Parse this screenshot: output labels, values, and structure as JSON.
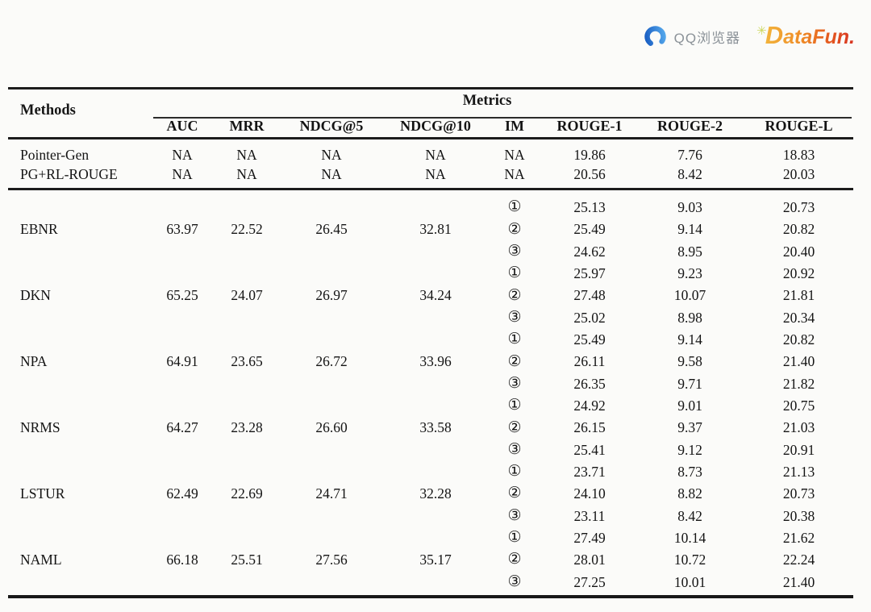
{
  "logos": {
    "qq_browser": {
      "label": "QQ浏览器",
      "icon_color_start": "#55aaec",
      "icon_color_end": "#1559c0"
    },
    "datafun": {
      "wordmark": "DataFun.",
      "spark_icon": "✳",
      "accent_from": "#f2b43c",
      "accent_to": "#d63222"
    }
  },
  "table": {
    "methods_header": "Methods",
    "metrics_header": "Metrics",
    "columns": [
      "AUC",
      "MRR",
      "NDCG@5",
      "NDCG@10",
      "IM",
      "ROUGE-1",
      "ROUGE-2",
      "ROUGE-L"
    ],
    "baseline_rows": [
      {
        "method": "Pointer-Gen",
        "auc": "NA",
        "mrr": "NA",
        "ndcg5": "NA",
        "ndcg10": "NA",
        "im": "NA",
        "rouge1": "19.86",
        "rouge2": "7.76",
        "rougeL": "18.83"
      },
      {
        "method": "PG+RL-ROUGE",
        "auc": "NA",
        "mrr": "NA",
        "ndcg5": "NA",
        "ndcg10": "NA",
        "im": "NA",
        "rouge1": "20.56",
        "rouge2": "8.42",
        "rougeL": "20.03"
      }
    ],
    "group_rows": [
      {
        "method": "EBNR",
        "auc": "63.97",
        "mrr": "22.52",
        "ndcg5": "26.45",
        "ndcg10": "32.81",
        "im_rows": [
          {
            "im": "①",
            "rouge1": "25.13",
            "rouge2": "9.03",
            "rougeL": "20.73"
          },
          {
            "im": "②",
            "rouge1": "25.49",
            "rouge2": "9.14",
            "rougeL": "20.82"
          },
          {
            "im": "③",
            "rouge1": "24.62",
            "rouge2": "8.95",
            "rougeL": "20.40"
          }
        ]
      },
      {
        "method": "DKN",
        "auc": "65.25",
        "mrr": "24.07",
        "ndcg5": "26.97",
        "ndcg10": "34.24",
        "im_rows": [
          {
            "im": "①",
            "rouge1": "25.97",
            "rouge2": "9.23",
            "rougeL": "20.92"
          },
          {
            "im": "②",
            "rouge1": "27.48",
            "rouge2": "10.07",
            "rougeL": "21.81"
          },
          {
            "im": "③",
            "rouge1": "25.02",
            "rouge2": "8.98",
            "rougeL": "20.34"
          }
        ]
      },
      {
        "method": "NPA",
        "auc": "64.91",
        "mrr": "23.65",
        "ndcg5": "26.72",
        "ndcg10": "33.96",
        "im_rows": [
          {
            "im": "①",
            "rouge1": "25.49",
            "rouge2": "9.14",
            "rougeL": "20.82"
          },
          {
            "im": "②",
            "rouge1": "26.11",
            "rouge2": "9.58",
            "rougeL": "21.40"
          },
          {
            "im": "③",
            "rouge1": "26.35",
            "rouge2": "9.71",
            "rougeL": "21.82"
          }
        ]
      },
      {
        "method": "NRMS",
        "auc": "64.27",
        "mrr": "23.28",
        "ndcg5": "26.60",
        "ndcg10": "33.58",
        "im_rows": [
          {
            "im": "①",
            "rouge1": "24.92",
            "rouge2": "9.01",
            "rougeL": "20.75"
          },
          {
            "im": "②",
            "rouge1": "26.15",
            "rouge2": "9.37",
            "rougeL": "21.03"
          },
          {
            "im": "③",
            "rouge1": "25.41",
            "rouge2": "9.12",
            "rougeL": "20.91"
          }
        ]
      },
      {
        "method": "LSTUR",
        "auc": "62.49",
        "mrr": "22.69",
        "ndcg5": "24.71",
        "ndcg10": "32.28",
        "im_rows": [
          {
            "im": "①",
            "rouge1": "23.71",
            "rouge2": "8.73",
            "rougeL": "21.13"
          },
          {
            "im": "②",
            "rouge1": "24.10",
            "rouge2": "8.82",
            "rougeL": "20.73"
          },
          {
            "im": "③",
            "rouge1": "23.11",
            "rouge2": "8.42",
            "rougeL": "20.38"
          }
        ]
      },
      {
        "method": "NAML",
        "auc": "66.18",
        "mrr": "25.51",
        "ndcg5": "27.56",
        "ndcg10": "35.17",
        "im_rows": [
          {
            "im": "①",
            "rouge1": "27.49",
            "rouge2": "10.14",
            "rougeL": "21.62"
          },
          {
            "im": "②",
            "rouge1": "28.01",
            "rouge2": "10.72",
            "rougeL": "22.24"
          },
          {
            "im": "③",
            "rouge1": "27.25",
            "rouge2": "10.01",
            "rougeL": "21.40"
          }
        ]
      }
    ]
  }
}
